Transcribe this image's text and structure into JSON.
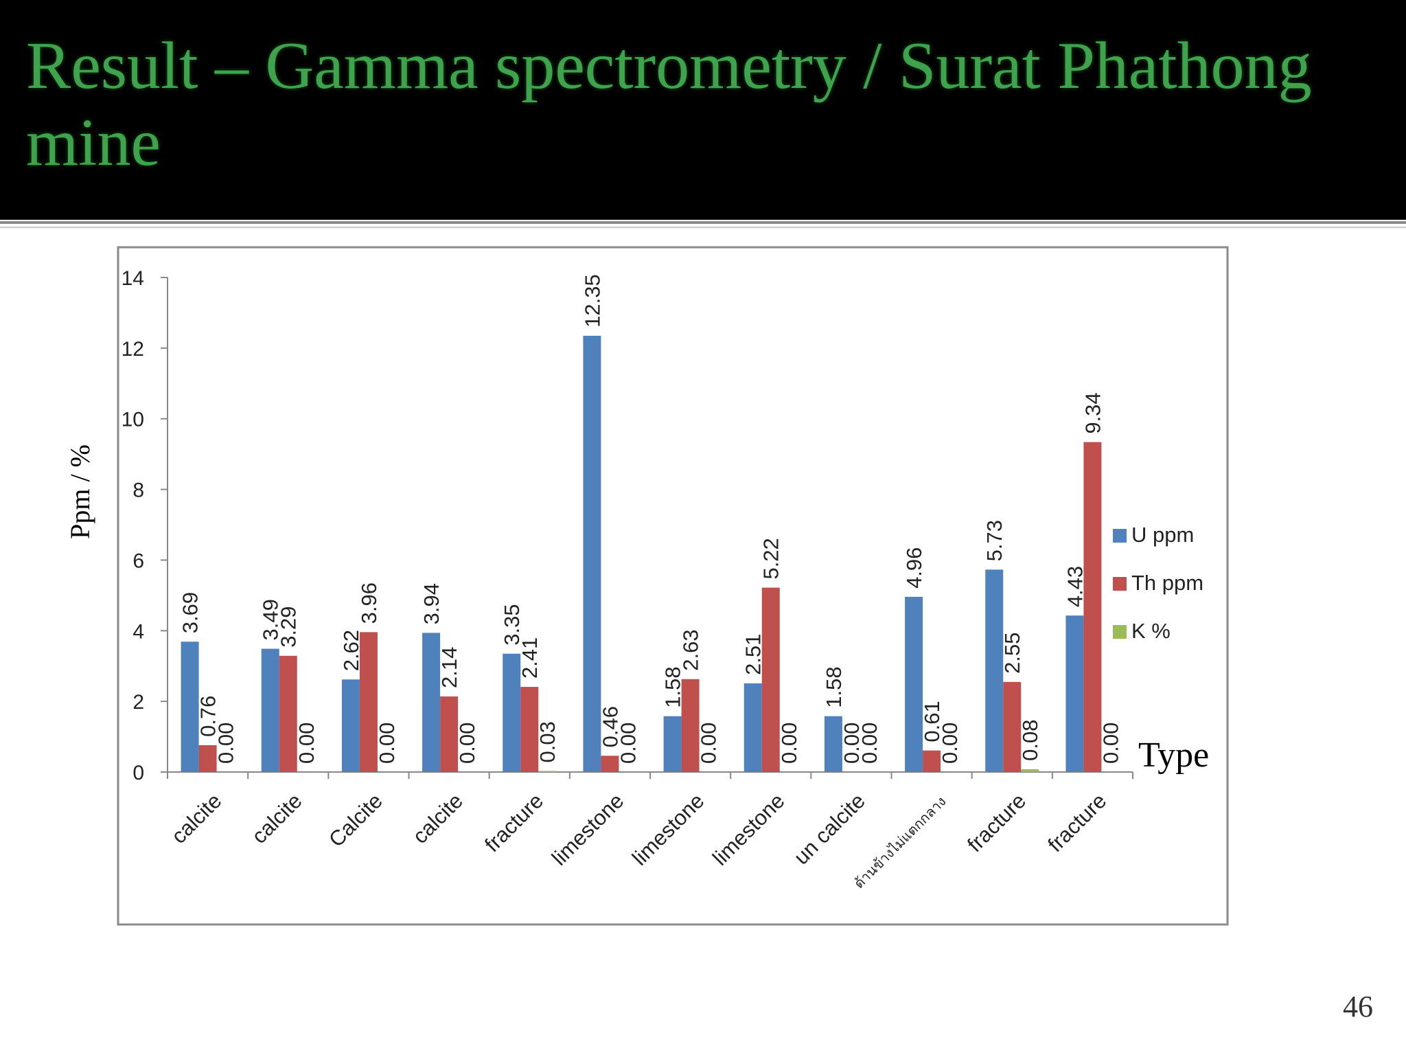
{
  "slide": {
    "title": "Result – Gamma spectrometry / Surat Phathong mine",
    "page_number": "46"
  },
  "colors": {
    "title": "#3fa34d",
    "header_bg": "#000000",
    "u_series": "#4f81bd",
    "th_series": "#c0504d",
    "k_series": "#9bbb59"
  },
  "chart_data": {
    "type": "bar",
    "title": "",
    "xlabel": "Type",
    "ylabel": "Ppm / %",
    "ylim": [
      0,
      14
    ],
    "yticks": [
      0,
      2,
      4,
      6,
      8,
      10,
      12,
      14
    ],
    "legend_position": "right",
    "grid": false,
    "categories": [
      "calcite",
      "calcite",
      "Calcite",
      "calcite",
      "fracture",
      "limestone",
      "limestone",
      "limestone",
      "un calcite",
      "ด้านข้างไม่แตกกลาง",
      "fracture",
      "fracture"
    ],
    "series": [
      {
        "name": "U ppm",
        "color": "#4f81bd",
        "values": [
          3.69,
          3.49,
          2.62,
          3.94,
          3.35,
          12.35,
          1.58,
          2.51,
          1.58,
          4.96,
          5.73,
          4.43
        ],
        "labels": [
          "3.69",
          "3.49",
          "2.62",
          "3.94",
          "3.35",
          "12.35",
          "1.58",
          "2.51",
          "1.58",
          "4.96",
          "5.73",
          "4.43"
        ]
      },
      {
        "name": "Th ppm",
        "color": "#c0504d",
        "values": [
          0.76,
          3.29,
          3.96,
          2.14,
          2.41,
          0.46,
          2.63,
          5.22,
          0.0,
          0.61,
          2.55,
          9.34
        ],
        "labels": [
          "0.76",
          "3.29",
          "3.96",
          "2.14",
          "2.41",
          "0.46",
          "2.63",
          "5.22",
          "0.00",
          "0.61",
          "2.55",
          "9.34"
        ]
      },
      {
        "name": "K %",
        "color": "#9bbb59",
        "values": [
          0.0,
          0.0,
          0.0,
          0.0,
          0.03,
          0.0,
          0.0,
          0.0,
          0.0,
          0.0,
          0.08,
          0.0
        ],
        "labels": [
          "0.00",
          "0.00",
          "0.00",
          "0.00",
          "0.03",
          "0.00",
          "0.00",
          "0.00",
          "0.00",
          "0.00",
          "0.08",
          "0.00"
        ]
      }
    ]
  }
}
